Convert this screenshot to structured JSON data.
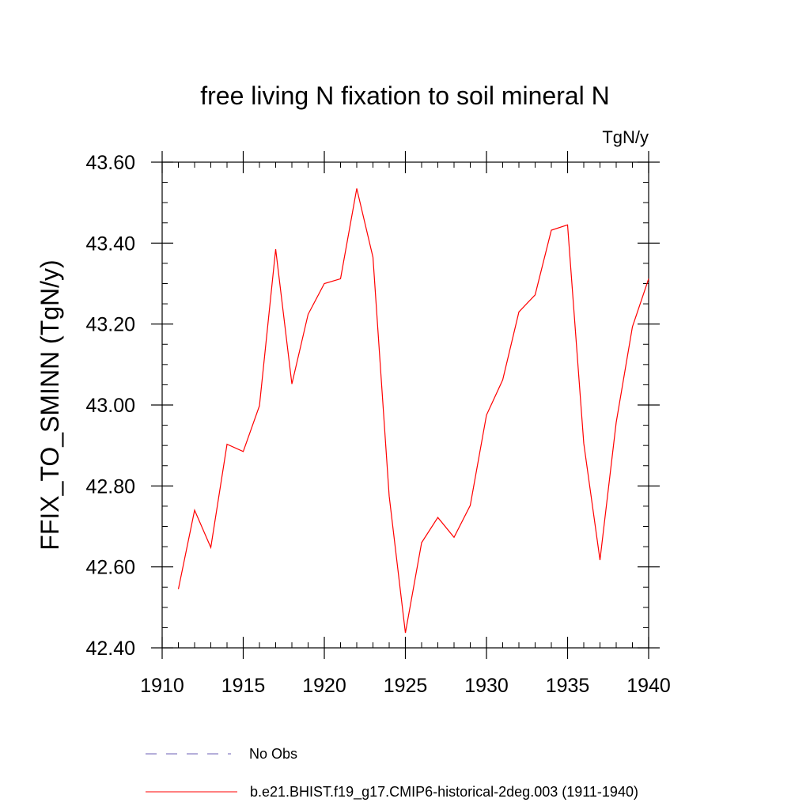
{
  "chart_data": {
    "type": "line",
    "title": "free living N fixation to soil mineral N",
    "units_label": "TgN/y",
    "ylabel": "FFIX_TO_SMINN  (TgN/y)",
    "xlabel": "",
    "xlim": [
      1910,
      1940
    ],
    "ylim": [
      42.4,
      43.6
    ],
    "x_ticks": [
      1910,
      1915,
      1920,
      1925,
      1930,
      1935,
      1940
    ],
    "x_tick_labels": [
      "1910",
      "1915",
      "1920",
      "1925",
      "1930",
      "1935",
      "1940"
    ],
    "y_ticks": [
      42.4,
      42.6,
      42.8,
      43.0,
      43.2,
      43.4,
      43.6
    ],
    "y_tick_labels": [
      "42.40",
      "42.60",
      "42.80",
      "43.00",
      "43.20",
      "43.40",
      "43.60"
    ],
    "grid": false,
    "legend_position": "bottom",
    "series": [
      {
        "name": "No Obs",
        "color": "#6b5fb5",
        "style": "dashed",
        "x": [],
        "y": []
      },
      {
        "name": "b.e21.BHIST.f19_g17.CMIP6-historical-2deg.003 (1911-1940)",
        "color": "#ff0000",
        "style": "solid",
        "x": [
          1911,
          1912,
          1913,
          1914,
          1915,
          1916,
          1917,
          1918,
          1919,
          1920,
          1921,
          1922,
          1923,
          1924,
          1925,
          1926,
          1927,
          1928,
          1929,
          1930,
          1931,
          1932,
          1933,
          1934,
          1935,
          1936,
          1937,
          1938,
          1939,
          1940
        ],
        "y": [
          42.545,
          42.74,
          42.648,
          42.903,
          42.885,
          42.998,
          43.385,
          43.052,
          43.224,
          43.3,
          43.312,
          43.535,
          43.365,
          42.775,
          42.437,
          42.66,
          42.722,
          42.673,
          42.752,
          42.975,
          43.062,
          43.23,
          43.272,
          43.432,
          43.445,
          42.905,
          42.617,
          42.957,
          43.193,
          43.312
        ]
      }
    ]
  }
}
